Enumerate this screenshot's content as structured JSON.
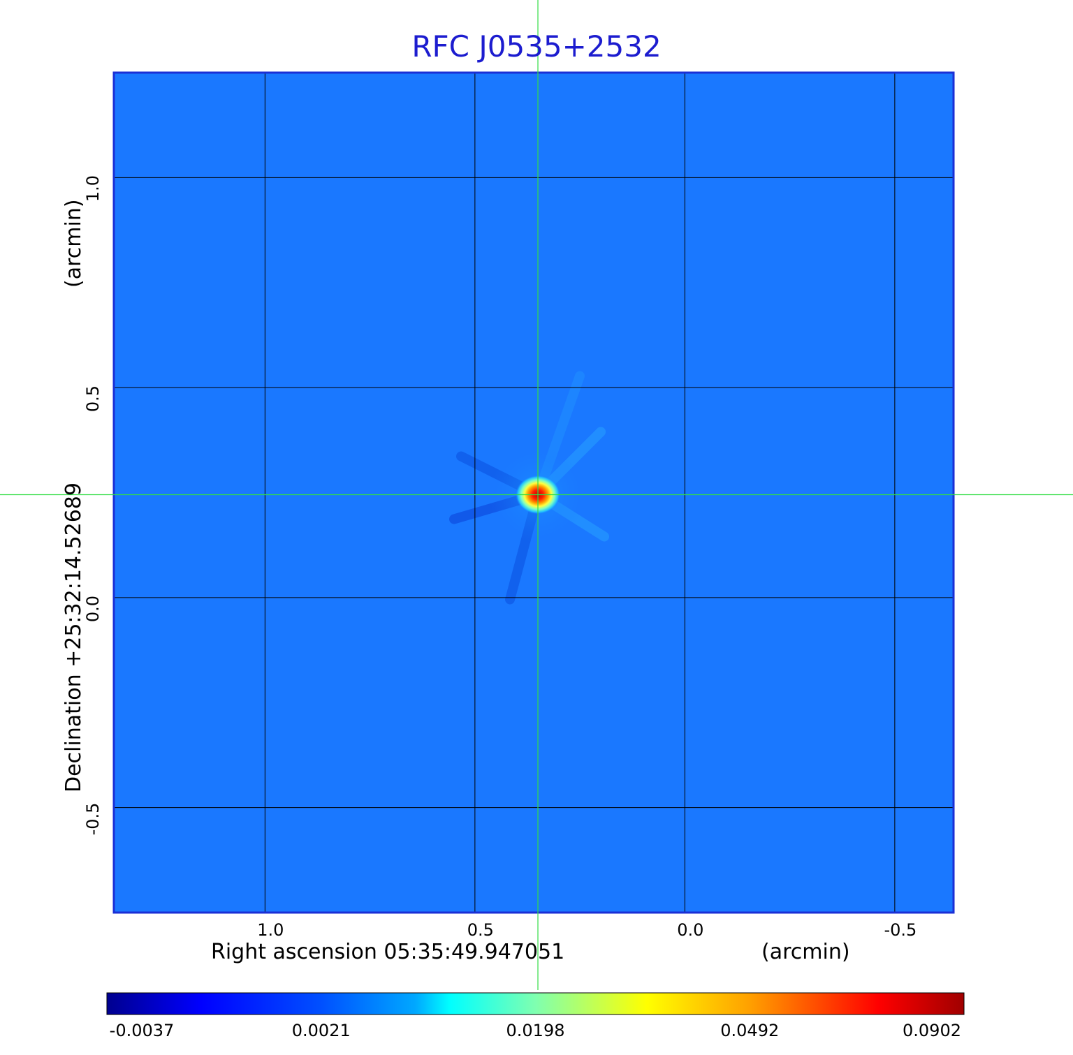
{
  "colors": {
    "title": "#1c1ccf",
    "crosshair": "#33dd44",
    "frame": "#1a2fd6",
    "grid": "#000000",
    "background_field": "#1a78ff"
  },
  "chart_data": {
    "type": "heatmap",
    "title": "RFC J0535+2532",
    "xlabel": "Right ascension  05:35:49.947051",
    "xlabel_unit": "(arcmin)",
    "ylabel": "Declination  +25:32:14.52689",
    "ylabel_unit": "(arcmin)",
    "x_axis_reversed": true,
    "xlim": [
      1.36,
      -0.64
    ],
    "ylim": [
      -0.75,
      1.25
    ],
    "x_ticks": [
      "1.0",
      "0.5",
      "0.0",
      "-0.5"
    ],
    "x_tick_values": [
      1.0,
      0.5,
      0.0,
      -0.5
    ],
    "y_ticks": [
      "1.0",
      "0.5",
      "0.0",
      "-0.5"
    ],
    "y_tick_values": [
      1.0,
      0.5,
      0.0,
      -0.5
    ],
    "grid": true,
    "crosshair": {
      "x": 0.35,
      "y": 0.245
    },
    "peak_source": {
      "x": 0.35,
      "y": 0.245,
      "peak_value": 0.0902
    },
    "colormap": "jet",
    "colorbar": {
      "orientation": "horizontal",
      "position": "bottom",
      "tick_labels": [
        "-0.0037",
        "0.0021",
        "0.0198",
        "0.0492",
        "0.0902"
      ],
      "min": -0.0037,
      "max": 0.0902
    }
  }
}
